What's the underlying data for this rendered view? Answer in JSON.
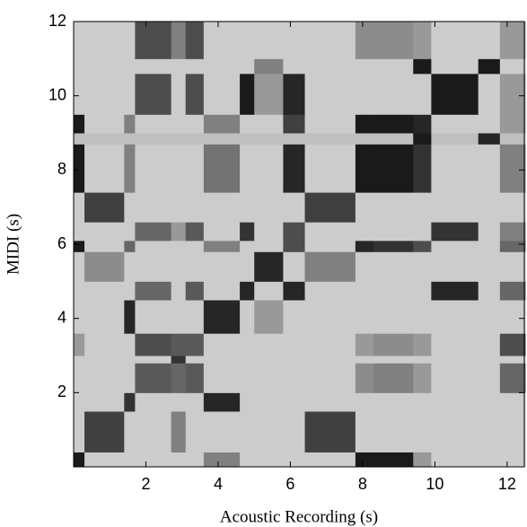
{
  "chart_data": {
    "type": "heatmap",
    "xlabel": "Acoustic Recording (s)",
    "ylabel": "MIDI (s)",
    "xlim": [
      0,
      12.5
    ],
    "ylim": [
      0,
      12
    ],
    "xticks": [
      2,
      4,
      6,
      8,
      10,
      12
    ],
    "yticks": [
      2,
      4,
      6,
      8,
      10,
      12
    ],
    "xbins": [
      0,
      0.3,
      1.4,
      1.7,
      2.7,
      3.1,
      3.6,
      4.6,
      5.0,
      5.8,
      6.4,
      7.8,
      8.3,
      9.4,
      9.9,
      11.2,
      11.8,
      12.5
    ],
    "ybins": [
      0,
      0.4,
      1.5,
      2.0,
      2.8,
      3.0,
      3.6,
      4.5,
      5.0,
      5.8,
      6.1,
      6.6,
      7.4,
      8.7,
      9.0,
      9.5,
      10.6,
      11.0,
      12
    ],
    "values": [
      [
        0.1,
        0.8,
        0.8,
        0.8,
        0.8,
        0.8,
        0.5,
        0.8,
        0.8,
        0.8,
        0.8,
        0.1,
        0.1,
        0.6,
        0.8,
        0.8,
        0.8
      ],
      [
        0.8,
        0.25,
        0.8,
        0.8,
        0.5,
        0.8,
        0.8,
        0.8,
        0.8,
        0.8,
        0.25,
        0.8,
        0.8,
        0.8,
        0.8,
        0.8,
        0.8
      ],
      [
        0.8,
        0.8,
        0.2,
        0.8,
        0.8,
        0.8,
        0.15,
        0.8,
        0.8,
        0.8,
        0.8,
        0.8,
        0.8,
        0.8,
        0.8,
        0.8,
        0.8
      ],
      [
        0.8,
        0.8,
        0.8,
        0.35,
        0.4,
        0.35,
        0.8,
        0.8,
        0.8,
        0.8,
        0.8,
        0.55,
        0.5,
        0.6,
        0.8,
        0.8,
        0.4
      ],
      [
        0.8,
        0.8,
        0.8,
        0.8,
        0.2,
        0.8,
        0.8,
        0.8,
        0.8,
        0.8,
        0.8,
        0.8,
        0.8,
        0.8,
        0.8,
        0.8,
        0.8
      ],
      [
        0.6,
        0.8,
        0.8,
        0.3,
        0.35,
        0.35,
        0.8,
        0.8,
        0.8,
        0.8,
        0.8,
        0.6,
        0.55,
        0.6,
        0.8,
        0.8,
        0.3
      ],
      [
        0.8,
        0.8,
        0.15,
        0.8,
        0.8,
        0.8,
        0.15,
        0.8,
        0.6,
        0.8,
        0.8,
        0.8,
        0.8,
        0.8,
        0.8,
        0.8,
        0.8
      ],
      [
        0.8,
        0.8,
        0.8,
        0.4,
        0.8,
        0.35,
        0.8,
        0.15,
        0.8,
        0.15,
        0.8,
        0.8,
        0.8,
        0.8,
        0.15,
        0.8,
        0.4
      ],
      [
        0.8,
        0.55,
        0.8,
        0.8,
        0.8,
        0.8,
        0.8,
        0.8,
        0.15,
        0.8,
        0.5,
        0.8,
        0.8,
        0.8,
        0.8,
        0.8,
        0.8
      ],
      [
        0.1,
        0.8,
        0.4,
        0.8,
        0.8,
        0.8,
        0.5,
        0.8,
        0.8,
        0.3,
        0.8,
        0.15,
        0.2,
        0.3,
        0.8,
        0.8,
        0.4
      ],
      [
        0.8,
        0.8,
        0.8,
        0.4,
        0.6,
        0.35,
        0.8,
        0.2,
        0.8,
        0.3,
        0.8,
        0.8,
        0.8,
        0.8,
        0.2,
        0.8,
        0.5
      ],
      [
        0.8,
        0.25,
        0.8,
        0.8,
        0.8,
        0.8,
        0.8,
        0.8,
        0.8,
        0.8,
        0.25,
        0.8,
        0.8,
        0.8,
        0.8,
        0.8,
        0.8
      ],
      [
        0.1,
        0.8,
        0.5,
        0.8,
        0.8,
        0.8,
        0.45,
        0.8,
        0.8,
        0.15,
        0.8,
        0.1,
        0.1,
        0.2,
        0.8,
        0.8,
        0.5
      ],
      [
        0.75,
        0.75,
        0.75,
        0.75,
        0.75,
        0.75,
        0.75,
        0.75,
        0.75,
        0.75,
        0.75,
        0.75,
        0.75,
        0.1,
        0.75,
        0.15,
        0.75
      ],
      [
        0.1,
        0.8,
        0.5,
        0.8,
        0.8,
        0.8,
        0.5,
        0.8,
        0.8,
        0.25,
        0.8,
        0.1,
        0.1,
        0.15,
        0.8,
        0.8,
        0.6
      ],
      [
        0.8,
        0.8,
        0.8,
        0.3,
        0.8,
        0.3,
        0.8,
        0.1,
        0.6,
        0.15,
        0.8,
        0.8,
        0.8,
        0.8,
        0.1,
        0.8,
        0.6
      ],
      [
        0.8,
        0.8,
        0.8,
        0.8,
        0.8,
        0.8,
        0.8,
        0.8,
        0.5,
        0.8,
        0.8,
        0.8,
        0.8,
        0.1,
        0.8,
        0.1,
        0.8
      ],
      [
        0.8,
        0.8,
        0.8,
        0.3,
        0.5,
        0.3,
        0.8,
        0.8,
        0.8,
        0.8,
        0.8,
        0.55,
        0.55,
        0.6,
        0.8,
        0.8,
        0.6
      ]
    ]
  }
}
